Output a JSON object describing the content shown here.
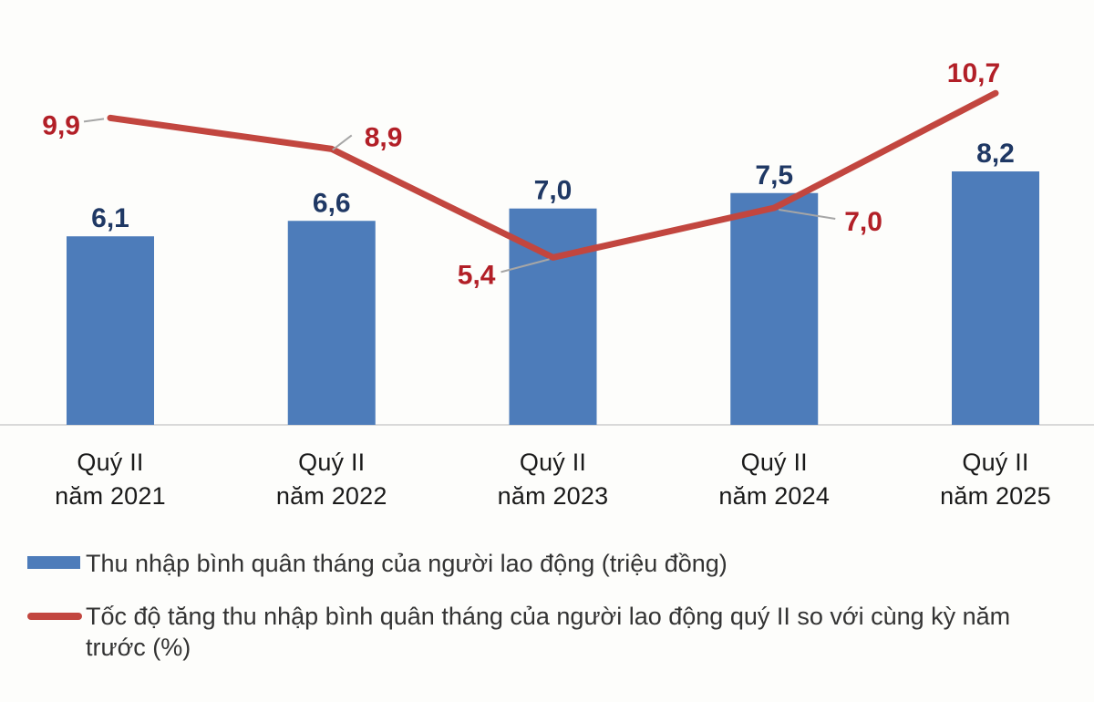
{
  "chart_data": {
    "type": "bar",
    "subtype": "bar+line combo, no visible y-axis, data labels on points, baseline only",
    "categories": [
      [
        "Quý II",
        "năm 2021"
      ],
      [
        "Quý II",
        "năm 2022"
      ],
      [
        "Quý II",
        "năm 2023"
      ],
      [
        "Quý II",
        "năm 2024"
      ],
      [
        "Quý II",
        "năm 2025"
      ]
    ],
    "category_ids": [
      "2021",
      "2022",
      "2023",
      "2024",
      "2025"
    ],
    "series": [
      {
        "name": "Thu nhập bình quân tháng của người lao động (triệu đồng)",
        "type": "bar",
        "values": [
          6.1,
          6.6,
          7.0,
          7.5,
          8.2
        ],
        "labels": [
          "6,1",
          "6,6",
          "7,0",
          "7,5",
          "8,2"
        ],
        "color": "#4d7cba",
        "label_color": "#1f3864"
      },
      {
        "name": "Tốc độ tăng thu nhập bình quân tháng của người lao động quý II so với cùng kỳ năm trước (%)",
        "type": "line",
        "values": [
          9.9,
          8.9,
          5.4,
          7.0,
          10.7
        ],
        "labels": [
          "9,9",
          "8,9",
          "5,4",
          "7,0",
          "10,7"
        ],
        "color": "#c2463f",
        "label_color": "#b21f27",
        "label_placements": [
          "left",
          "above-right",
          "below-left",
          "right",
          "above"
        ]
      }
    ],
    "title": "",
    "xlabel": "",
    "ylabel": "",
    "ylim": [
      0,
      12
    ],
    "grid": false,
    "legend_position": "bottom-left",
    "axis_line_color": "#d9d9d9",
    "leader_line_color": "#a6a6a6",
    "x_tick_color": "#1a1a1a"
  }
}
